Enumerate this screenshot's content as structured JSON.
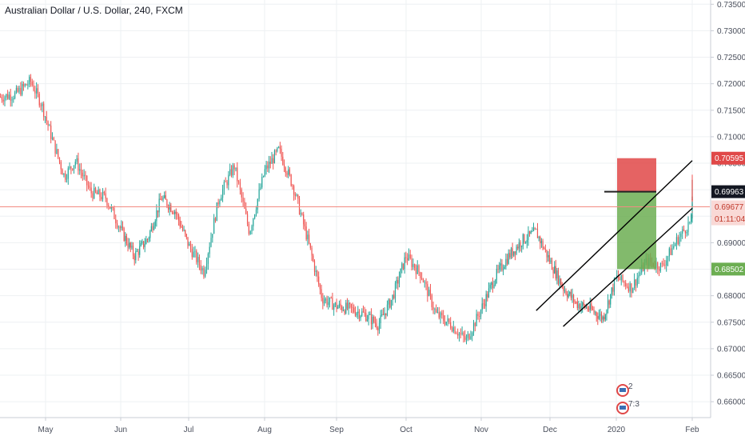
{
  "title": "Australian Dollar / U.S. Dollar, 240, FXCM",
  "colors": {
    "up": "#26a69a",
    "down": "#ef5350",
    "grid": "#eef0f3",
    "axis": "#c8ccd4",
    "current_line": "#f28b82",
    "entry_line": "#222222",
    "stop_zone": "#e04848",
    "target_zone": "#6cae52",
    "channel": "#000000"
  },
  "chart_data": {
    "type": "candlestick",
    "symbol": "Australian Dollar / U.S. Dollar",
    "interval": "240",
    "source": "FXCM",
    "ylim": [
      0.657,
      0.7358
    ],
    "y_ticks": [
      "0.73500",
      "0.73000",
      "0.72500",
      "0.72000",
      "0.71500",
      "0.71000",
      "0.70500",
      "0.70000",
      "0.69500",
      "0.69000",
      "0.68500",
      "0.68000",
      "0.67500",
      "0.67000",
      "0.66500",
      "0.66000"
    ],
    "x_ticks": [
      "May",
      "Jun",
      "Jul",
      "Aug",
      "Sep",
      "Oct",
      "Nov",
      "Dec",
      "2020",
      "Feb"
    ],
    "price_path": [
      {
        "t": 0.0,
        "p": 0.7175
      },
      {
        "t": 0.2,
        "p": 0.718
      },
      {
        "t": 0.4,
        "p": 0.7205
      },
      {
        "t": 0.55,
        "p": 0.716
      },
      {
        "t": 0.7,
        "p": 0.709
      },
      {
        "t": 0.85,
        "p": 0.7025
      },
      {
        "t": 1.0,
        "p": 0.7055
      },
      {
        "t": 1.2,
        "p": 0.6995
      },
      {
        "t": 1.4,
        "p": 0.6985
      },
      {
        "t": 1.6,
        "p": 0.6925
      },
      {
        "t": 1.8,
        "p": 0.6875
      },
      {
        "t": 2.0,
        "p": 0.6908
      },
      {
        "t": 2.2,
        "p": 0.6985
      },
      {
        "t": 2.4,
        "p": 0.696
      },
      {
        "t": 2.6,
        "p": 0.6895
      },
      {
        "t": 2.8,
        "p": 0.6845
      },
      {
        "t": 3.0,
        "p": 0.6985
      },
      {
        "t": 3.2,
        "p": 0.7045
      },
      {
        "t": 3.4,
        "p": 0.692
      },
      {
        "t": 3.6,
        "p": 0.7035
      },
      {
        "t": 3.8,
        "p": 0.7075
      },
      {
        "t": 4.0,
        "p": 0.7005
      },
      {
        "t": 4.2,
        "p": 0.6905
      },
      {
        "t": 4.4,
        "p": 0.6795
      },
      {
        "t": 4.6,
        "p": 0.678
      },
      {
        "t": 4.8,
        "p": 0.6775
      },
      {
        "t": 5.0,
        "p": 0.6765
      },
      {
        "t": 5.2,
        "p": 0.6745
      },
      {
        "t": 5.4,
        "p": 0.6795
      },
      {
        "t": 5.6,
        "p": 0.6875
      },
      {
        "t": 5.8,
        "p": 0.684
      },
      {
        "t": 6.0,
        "p": 0.6765
      },
      {
        "t": 6.2,
        "p": 0.6745
      },
      {
        "t": 6.4,
        "p": 0.6715
      },
      {
        "t": 6.6,
        "p": 0.6775
      },
      {
        "t": 6.8,
        "p": 0.6835
      },
      {
        "t": 7.0,
        "p": 0.6875
      },
      {
        "t": 7.2,
        "p": 0.6905
      },
      {
        "t": 7.4,
        "p": 0.692
      },
      {
        "t": 7.6,
        "p": 0.6865
      },
      {
        "t": 7.8,
        "p": 0.6815
      },
      {
        "t": 8.0,
        "p": 0.6785
      },
      {
        "t": 8.2,
        "p": 0.6775
      },
      {
        "t": 8.4,
        "p": 0.6758
      },
      {
        "t": 8.6,
        "p": 0.6835
      },
      {
        "t": 8.8,
        "p": 0.6815
      },
      {
        "t": 9.0,
        "p": 0.6865
      },
      {
        "t": 9.2,
        "p": 0.6855
      },
      {
        "t": 9.4,
        "p": 0.6905
      },
      {
        "t": 9.6,
        "p": 0.6945
      },
      {
        "t": 9.75,
        "p": 0.7015
      },
      {
        "t": 9.85,
        "p": 0.6985
      },
      {
        "t": 9.95,
        "p": 0.6968
      }
    ],
    "last_price_line": {
      "value": 0.69677,
      "label": "0.69677",
      "countdown": "01:11:04"
    },
    "position": {
      "stop_label": "0.70595",
      "stop": 0.70595,
      "entry_label": "0.69963",
      "entry": 0.69963,
      "target_label": "0.68502",
      "target": 0.68502
    },
    "channel_lines": [
      {
        "x1": 7.4,
        "y1": 0.6772,
        "x2": 9.82,
        "y2": 0.7055
      },
      {
        "x1": 7.8,
        "y1": 0.6742,
        "x2": 10.0,
        "y2": 0.6965
      }
    ],
    "event_markers": [
      "2",
      "7:3"
    ]
  }
}
